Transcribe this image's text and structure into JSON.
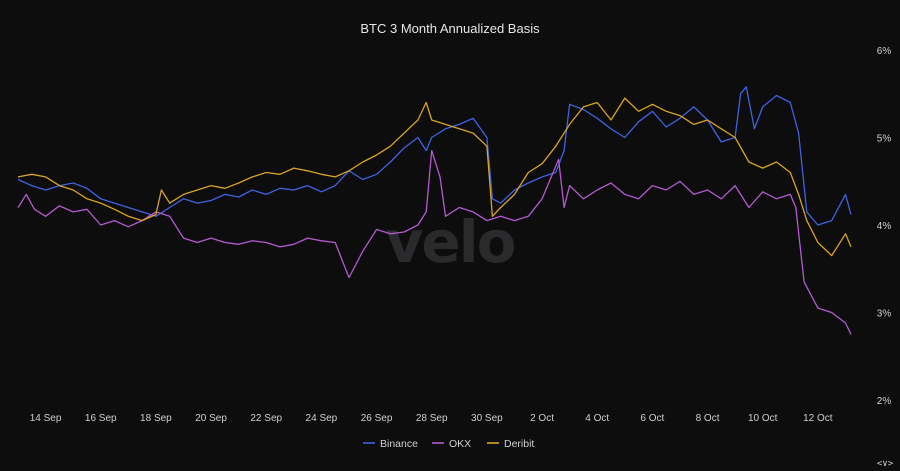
{
  "chart_data": {
    "type": "line",
    "title": "BTC 3 Month Annualized Basis",
    "watermark": "velo",
    "corner_text": "<∨>",
    "y_unit": "%",
    "ylim": [
      2,
      6
    ],
    "y_ticks": [
      2,
      3,
      4,
      5,
      6
    ],
    "y_tick_labels": [
      "2%",
      "3%",
      "4%",
      "5%",
      "6%"
    ],
    "y_axis_side": "right",
    "x_start": "13 Sep",
    "x_end": "13 Oct",
    "x_tick_labels": [
      "14 Sep",
      "16 Sep",
      "18 Sep",
      "20 Sep",
      "22 Sep",
      "24 Sep",
      "26 Sep",
      "28 Sep",
      "30 Sep",
      "2 Oct",
      "4 Oct",
      "6 Oct",
      "8 Oct",
      "10 Oct",
      "12 Oct"
    ],
    "x_tick_positions_days": [
      1,
      3,
      5,
      7,
      9,
      11,
      13,
      15,
      17,
      19,
      21,
      23,
      25,
      27,
      29
    ],
    "grid": false,
    "legend_position": "bottom",
    "series": [
      {
        "name": "Binance",
        "color": "#3f63e0",
        "points": [
          [
            0,
            4.52
          ],
          [
            0.5,
            4.45
          ],
          [
            1,
            4.4
          ],
          [
            1.5,
            4.45
          ],
          [
            2,
            4.48
          ],
          [
            2.5,
            4.42
          ],
          [
            3,
            4.3
          ],
          [
            3.5,
            4.25
          ],
          [
            4,
            4.2
          ],
          [
            4.5,
            4.15
          ],
          [
            5,
            4.1
          ],
          [
            5.5,
            4.2
          ],
          [
            6,
            4.3
          ],
          [
            6.5,
            4.25
          ],
          [
            7,
            4.28
          ],
          [
            7.5,
            4.35
          ],
          [
            8,
            4.32
          ],
          [
            8.5,
            4.4
          ],
          [
            9,
            4.35
          ],
          [
            9.5,
            4.42
          ],
          [
            10,
            4.4
          ],
          [
            10.5,
            4.45
          ],
          [
            11,
            4.38
          ],
          [
            11.5,
            4.45
          ],
          [
            12,
            4.62
          ],
          [
            12.5,
            4.52
          ],
          [
            13,
            4.58
          ],
          [
            13.5,
            4.72
          ],
          [
            14,
            4.88
          ],
          [
            14.5,
            5.0
          ],
          [
            14.8,
            4.85
          ],
          [
            15,
            5.0
          ],
          [
            15.5,
            5.1
          ],
          [
            16,
            5.15
          ],
          [
            16.5,
            5.22
          ],
          [
            17,
            5.0
          ],
          [
            17.2,
            4.3
          ],
          [
            17.5,
            4.25
          ],
          [
            18,
            4.4
          ],
          [
            18.5,
            4.48
          ],
          [
            19,
            4.55
          ],
          [
            19.5,
            4.6
          ],
          [
            19.8,
            4.85
          ],
          [
            20,
            5.38
          ],
          [
            20.5,
            5.32
          ],
          [
            21,
            5.22
          ],
          [
            21.5,
            5.1
          ],
          [
            22,
            5.0
          ],
          [
            22.5,
            5.18
          ],
          [
            23,
            5.3
          ],
          [
            23.5,
            5.12
          ],
          [
            24,
            5.22
          ],
          [
            24.5,
            5.35
          ],
          [
            25,
            5.2
          ],
          [
            25.5,
            4.95
          ],
          [
            26,
            5.0
          ],
          [
            26.2,
            5.5
          ],
          [
            26.4,
            5.58
          ],
          [
            26.7,
            5.1
          ],
          [
            27,
            5.35
          ],
          [
            27.5,
            5.48
          ],
          [
            28,
            5.4
          ],
          [
            28.3,
            5.05
          ],
          [
            28.6,
            4.15
          ],
          [
            29,
            4.0
          ],
          [
            29.5,
            4.05
          ],
          [
            30,
            4.35
          ],
          [
            30.2,
            4.12
          ]
        ]
      },
      {
        "name": "OKX",
        "color": "#b45ad0",
        "points": [
          [
            0,
            4.2
          ],
          [
            0.3,
            4.35
          ],
          [
            0.6,
            4.18
          ],
          [
            1,
            4.1
          ],
          [
            1.5,
            4.22
          ],
          [
            2,
            4.15
          ],
          [
            2.5,
            4.18
          ],
          [
            3,
            4.0
          ],
          [
            3.5,
            4.05
          ],
          [
            4,
            3.98
          ],
          [
            4.5,
            4.05
          ],
          [
            5,
            4.15
          ],
          [
            5.5,
            4.1
          ],
          [
            6,
            3.85
          ],
          [
            6.5,
            3.8
          ],
          [
            7,
            3.85
          ],
          [
            7.5,
            3.8
          ],
          [
            8,
            3.78
          ],
          [
            8.5,
            3.82
          ],
          [
            9,
            3.8
          ],
          [
            9.5,
            3.75
          ],
          [
            10,
            3.78
          ],
          [
            10.5,
            3.85
          ],
          [
            11,
            3.82
          ],
          [
            11.5,
            3.8
          ],
          [
            11.9,
            3.48
          ],
          [
            12,
            3.4
          ],
          [
            12.5,
            3.7
          ],
          [
            13,
            3.95
          ],
          [
            13.5,
            3.9
          ],
          [
            14,
            3.92
          ],
          [
            14.5,
            4.0
          ],
          [
            14.8,
            4.15
          ],
          [
            15,
            4.85
          ],
          [
            15.3,
            4.55
          ],
          [
            15.5,
            4.1
          ],
          [
            16,
            4.2
          ],
          [
            16.5,
            4.15
          ],
          [
            17,
            4.05
          ],
          [
            17.5,
            4.1
          ],
          [
            18,
            4.05
          ],
          [
            18.5,
            4.1
          ],
          [
            19,
            4.3
          ],
          [
            19.4,
            4.6
          ],
          [
            19.6,
            4.75
          ],
          [
            19.8,
            4.2
          ],
          [
            20,
            4.45
          ],
          [
            20.5,
            4.3
          ],
          [
            21,
            4.4
          ],
          [
            21.5,
            4.48
          ],
          [
            22,
            4.35
          ],
          [
            22.5,
            4.3
          ],
          [
            23,
            4.45
          ],
          [
            23.5,
            4.4
          ],
          [
            24,
            4.5
          ],
          [
            24.5,
            4.35
          ],
          [
            25,
            4.4
          ],
          [
            25.5,
            4.3
          ],
          [
            26,
            4.45
          ],
          [
            26.5,
            4.2
          ],
          [
            27,
            4.38
          ],
          [
            27.5,
            4.3
          ],
          [
            28,
            4.35
          ],
          [
            28.2,
            4.2
          ],
          [
            28.5,
            3.35
          ],
          [
            29,
            3.05
          ],
          [
            29.5,
            3.0
          ],
          [
            30,
            2.88
          ],
          [
            30.2,
            2.75
          ]
        ]
      },
      {
        "name": "Deribit",
        "color": "#d9a326",
        "points": [
          [
            0,
            4.55
          ],
          [
            0.5,
            4.58
          ],
          [
            1,
            4.55
          ],
          [
            1.5,
            4.45
          ],
          [
            2,
            4.4
          ],
          [
            2.5,
            4.3
          ],
          [
            3,
            4.25
          ],
          [
            3.5,
            4.18
          ],
          [
            4,
            4.1
          ],
          [
            4.5,
            4.05
          ],
          [
            5,
            4.12
          ],
          [
            5.2,
            4.4
          ],
          [
            5.5,
            4.25
          ],
          [
            6,
            4.35
          ],
          [
            6.5,
            4.4
          ],
          [
            7,
            4.45
          ],
          [
            7.5,
            4.42
          ],
          [
            8,
            4.48
          ],
          [
            8.5,
            4.55
          ],
          [
            9,
            4.6
          ],
          [
            9.5,
            4.58
          ],
          [
            10,
            4.65
          ],
          [
            10.5,
            4.62
          ],
          [
            11,
            4.58
          ],
          [
            11.5,
            4.55
          ],
          [
            12,
            4.62
          ],
          [
            12.5,
            4.72
          ],
          [
            13,
            4.8
          ],
          [
            13.5,
            4.9
          ],
          [
            14,
            5.05
          ],
          [
            14.5,
            5.2
          ],
          [
            14.8,
            5.4
          ],
          [
            15,
            5.2
          ],
          [
            15.5,
            5.15
          ],
          [
            16,
            5.1
          ],
          [
            16.5,
            5.05
          ],
          [
            17,
            4.9
          ],
          [
            17.2,
            4.1
          ],
          [
            17.5,
            4.2
          ],
          [
            18,
            4.35
          ],
          [
            18.5,
            4.6
          ],
          [
            19,
            4.7
          ],
          [
            19.5,
            4.9
          ],
          [
            20,
            5.15
          ],
          [
            20.5,
            5.35
          ],
          [
            21,
            5.4
          ],
          [
            21.5,
            5.2
          ],
          [
            22,
            5.45
          ],
          [
            22.5,
            5.3
          ],
          [
            23,
            5.38
          ],
          [
            23.5,
            5.3
          ],
          [
            24,
            5.25
          ],
          [
            24.5,
            5.15
          ],
          [
            25,
            5.2
          ],
          [
            25.5,
            5.1
          ],
          [
            26,
            5.0
          ],
          [
            26.5,
            4.72
          ],
          [
            27,
            4.65
          ],
          [
            27.5,
            4.72
          ],
          [
            28,
            4.6
          ],
          [
            28.3,
            4.35
          ],
          [
            28.6,
            4.05
          ],
          [
            29,
            3.8
          ],
          [
            29.5,
            3.65
          ],
          [
            30,
            3.9
          ],
          [
            30.2,
            3.75
          ]
        ]
      }
    ]
  }
}
